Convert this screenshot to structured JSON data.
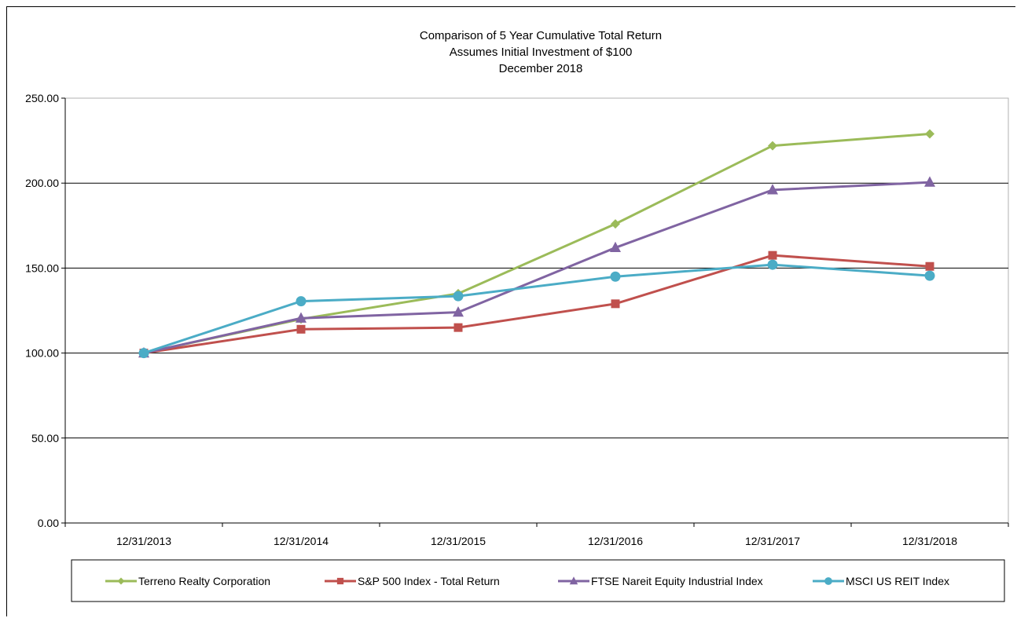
{
  "chart_data": {
    "type": "line",
    "title": [
      "Comparison  of 5 Year Cumulative  Total Return",
      "Assumes Initial Investment  of $100",
      "December  2018"
    ],
    "categories": [
      "12/31/2013",
      "12/31/2014",
      "12/31/2015",
      "12/31/2016",
      "12/31/2017",
      "12/31/2018"
    ],
    "ylim": [
      0,
      250
    ],
    "yticks": [
      0,
      50,
      100,
      150,
      200,
      250
    ],
    "ytick_labels": [
      "0.00",
      "50.00",
      "100.00",
      "150.00",
      "200.00",
      "250.00"
    ],
    "grid": true,
    "legend_position": "bottom",
    "series": [
      {
        "name": "Terreno Realty Corporation",
        "color": "#9bbb59",
        "marker": "diamond",
        "values": [
          100,
          120,
          135,
          176,
          222,
          229
        ]
      },
      {
        "name": "S&P 500 Index - Total Return",
        "color": "#c0504d",
        "marker": "square",
        "values": [
          100,
          114,
          115,
          129,
          157.5,
          151
        ]
      },
      {
        "name": "FTSE Nareit Equity Industrial Index",
        "color": "#8064a2",
        "marker": "triangle",
        "values": [
          100,
          120.5,
          124,
          162,
          196,
          200.5
        ]
      },
      {
        "name": "MSCI US REIT Index",
        "color": "#4bacc6",
        "marker": "circle",
        "values": [
          100,
          130.5,
          133.5,
          145,
          152,
          145.5
        ]
      }
    ]
  }
}
